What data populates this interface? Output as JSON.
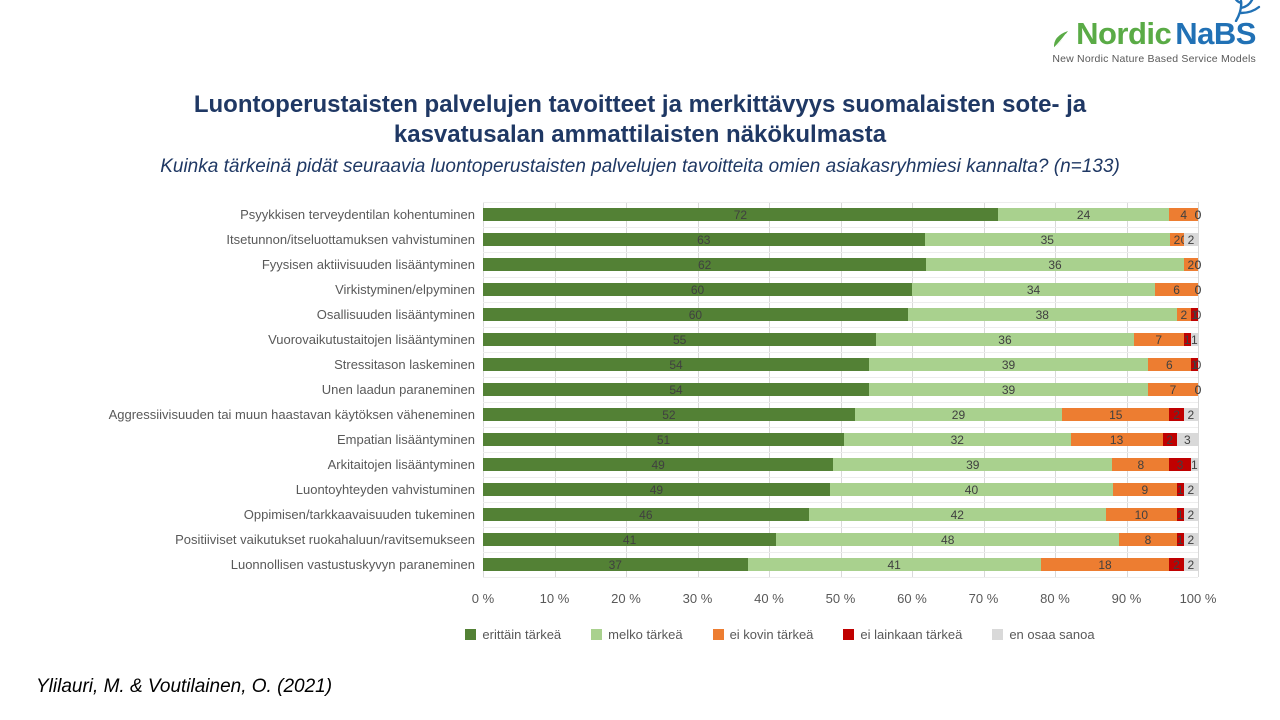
{
  "logo": {
    "brand_green": "Nordic",
    "brand_blue": "NaBS",
    "tagline": "New Nordic Nature Based Service Models",
    "green": "#5aab46",
    "blue": "#2171b5"
  },
  "title": {
    "lines": [
      "Luontoperustaisten palvelujen tavoitteet ja merkittävyys suomalaisten sote- ja",
      "kasvatusalan ammattilaisten näkökulmasta"
    ]
  },
  "subtitle": "Kuinka tärkeinä pidät seuraavia luontoperustaisten palvelujen tavoitteita omien asiakasryhmiesi kannalta? (n=133)",
  "source": "Ylilauri, M. & Voutilainen, O. (2021)",
  "colors": {
    "title_navy": "#1f3864",
    "axis_text": "#595959",
    "value_text": "#404040",
    "gridline": "#d9d9d9"
  },
  "chart_data": {
    "type": "bar",
    "orientation": "horizontal",
    "stacked": true,
    "unit": "%",
    "xlim": [
      0,
      100
    ],
    "x_ticks": [
      "0 %",
      "10 %",
      "20 %",
      "30 %",
      "40 %",
      "50 %",
      "60 %",
      "70 %",
      "80 %",
      "90 %",
      "100 %"
    ],
    "grid": true,
    "legend_position": "bottom",
    "categories": [
      "Psyykkisen terveydentilan kohentuminen",
      "Itsetunnon/itseluottamuksen vahvistuminen",
      "Fyysisen aktiivisuuden lisääntyminen",
      "Virkistyminen/elpyminen",
      "Osallisuuden lisääntyminen",
      "Vuorovaikutustaitojen lisääntyminen",
      "Stressitason laskeminen",
      "Unen laadun paraneminen",
      "Aggressiivisuuden tai muun haastavan käytöksen väheneminen",
      "Empatian lisääntyminen",
      "Arkitaitojen lisääntyminen",
      "Luontoyhteyden vahvistuminen",
      "Oppimisen/tarkkaavaisuuden tukeminen",
      "Positiiviset vaikutukset ruokahaluun/ravitsemukseen",
      "Luonnollisen vastustuskyvyn paraneminen"
    ],
    "series": [
      {
        "name": "erittäin tärkeä",
        "color": "#538135",
        "values": [
          72,
          63,
          62,
          60,
          60,
          55,
          54,
          54,
          52,
          51,
          49,
          49,
          46,
          41,
          37
        ]
      },
      {
        "name": "melko tärkeä",
        "color": "#a9d18e",
        "values": [
          24,
          35,
          36,
          34,
          38,
          36,
          39,
          39,
          29,
          32,
          39,
          40,
          42,
          48,
          41
        ]
      },
      {
        "name": "ei kovin tärkeä",
        "color": "#ed7d31",
        "values": [
          4,
          2,
          2,
          6,
          2,
          7,
          6,
          7,
          15,
          13,
          8,
          9,
          10,
          8,
          18
        ]
      },
      {
        "name": "ei lainkaan tärkeä",
        "color": "#c00000",
        "values": [
          0,
          0,
          0,
          0,
          1,
          1,
          1,
          0,
          2,
          2,
          3,
          1,
          1,
          1,
          2
        ]
      },
      {
        "name": "en osaa sanoa",
        "color": "#d9d9d9",
        "values": [
          0,
          2,
          0,
          0,
          0,
          1,
          0,
          0,
          2,
          3,
          1,
          2,
          2,
          2,
          2
        ]
      }
    ]
  }
}
